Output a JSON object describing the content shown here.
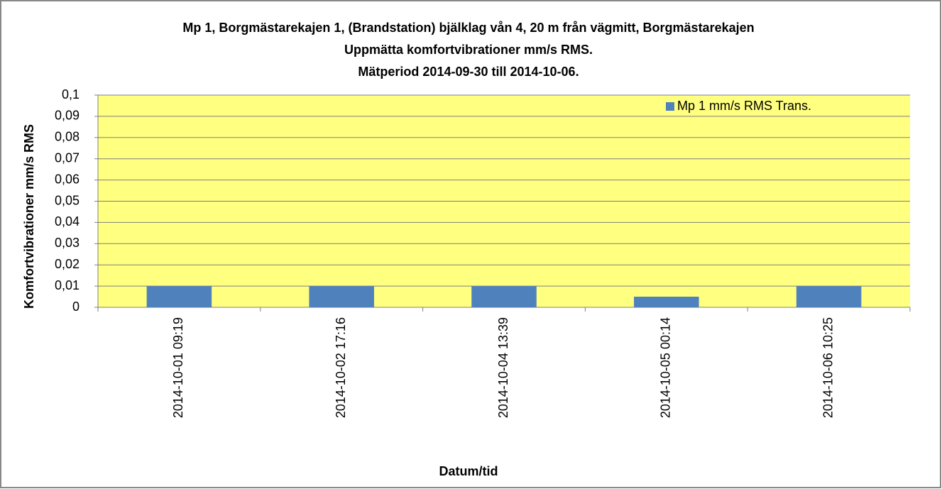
{
  "chart_data": {
    "type": "bar",
    "title": [
      "Mp 1, Borgmästarekajen 1, (Brandstation) bjälklag vån 4, 20 m från vägmitt, Borgmästarekajen",
      "Uppmätta komfortvibrationer mm/s RMS.",
      "Mätperiod 2014-09-30 till 2014-10-06."
    ],
    "x_label": "Datum/tid",
    "y_label": "Komfortvibrationer mm/s RMS",
    "categories": [
      "2014-10-01 09:19",
      "2014-10-02 17:16",
      "2014-10-04 13:39",
      "2014-10-05 00:14",
      "2014-10-06 10:25"
    ],
    "series": [
      {
        "name": "Mp 1 mm/s RMS Trans.",
        "color": "#4f81bd",
        "values": [
          0.01,
          0.01,
          0.01,
          0.005,
          0.01
        ]
      }
    ],
    "ylim": [
      0,
      0.1
    ],
    "yticks": [
      0,
      {
        "value": 0.01,
        "label": "0,01"
      },
      {
        "value": 0.02,
        "label": "0,02"
      },
      {
        "value": 0.03,
        "label": "0,03"
      },
      {
        "value": 0.04,
        "label": "0,04"
      },
      {
        "value": 0.05,
        "label": "0,05"
      },
      {
        "value": 0.06,
        "label": "0,06"
      },
      {
        "value": 0.07,
        "label": "0,07"
      },
      {
        "value": 0.08,
        "label": "0,08"
      },
      {
        "value": 0.09,
        "label": "0,09"
      },
      {
        "value": 0.1,
        "label": "0,1"
      }
    ],
    "grid": true,
    "legend": "top-right",
    "plot_background": "#ffff80"
  }
}
